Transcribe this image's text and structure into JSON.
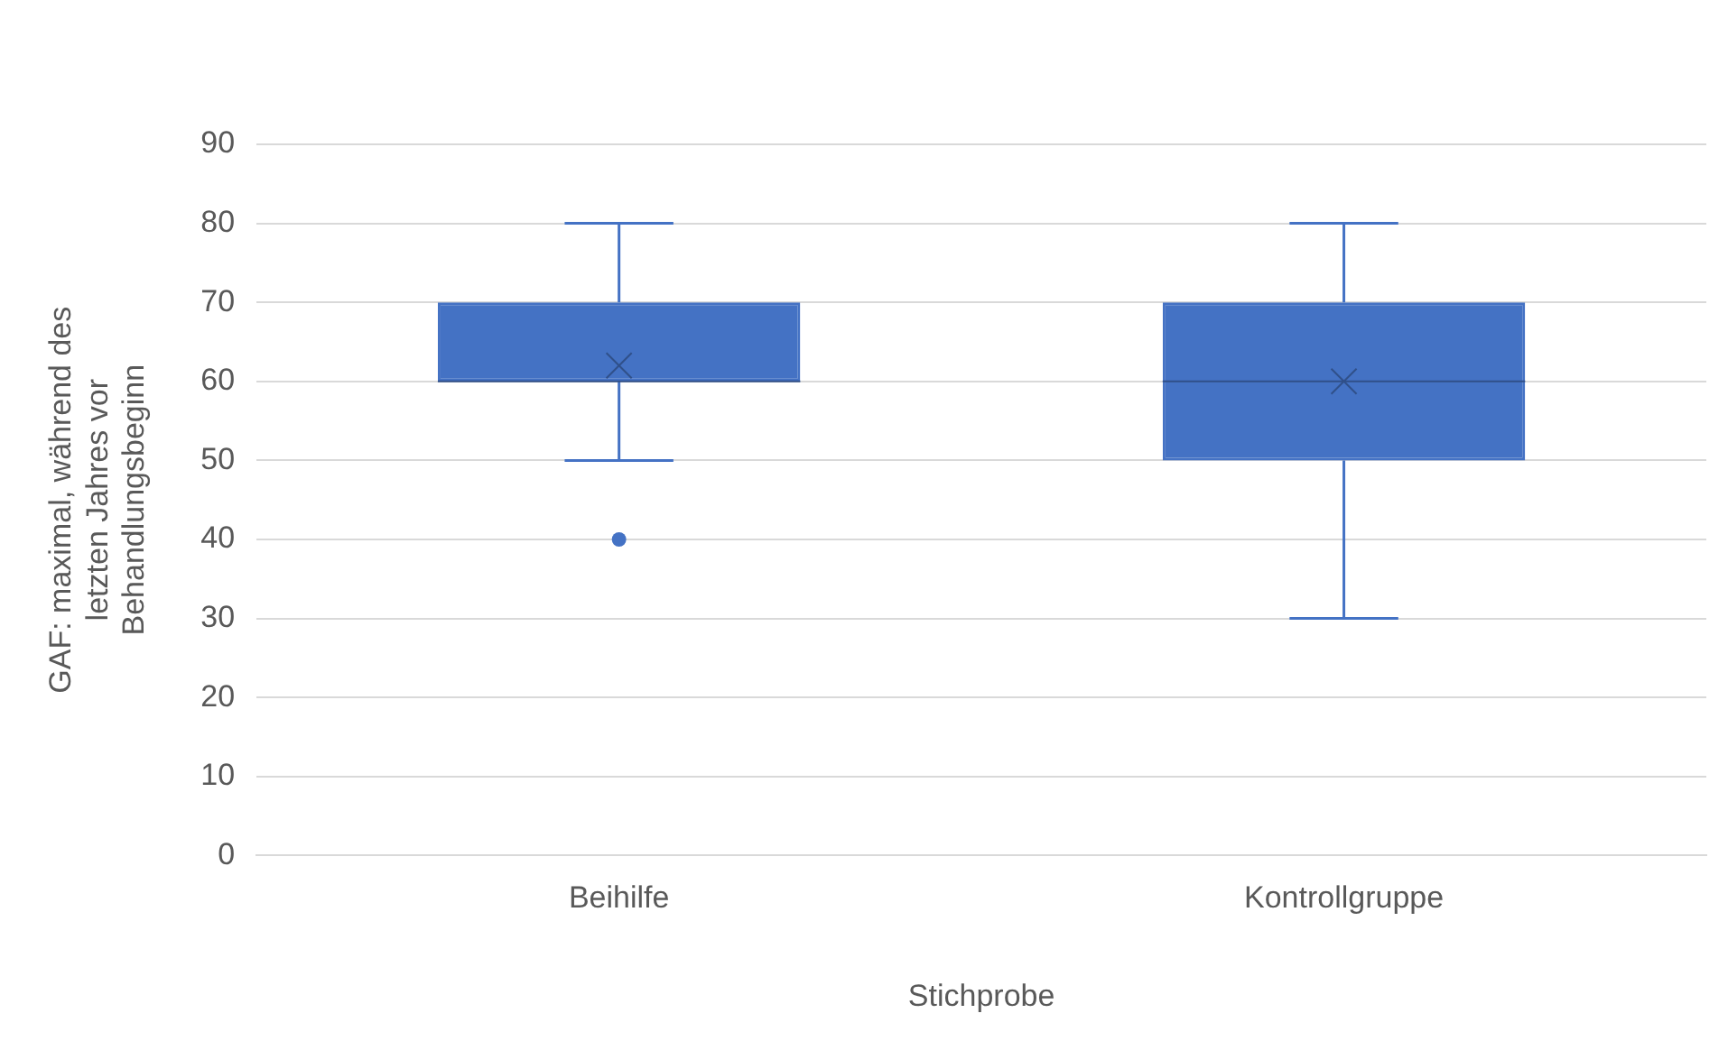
{
  "chart_data": {
    "type": "box",
    "xlabel": "Stichprobe",
    "ylabel": "GAF: maximal, während des letzten Jahres vor Behandlungsbeginn",
    "categories": [
      "Beihilfe",
      "Kontrollgruppe"
    ],
    "color": "#4472c4",
    "boxes": [
      {
        "low": 50,
        "q1": 60,
        "median": 60,
        "q3": 70,
        "high": 80,
        "mean": 62,
        "outliers": [
          40
        ]
      },
      {
        "low": 30,
        "q1": 50,
        "median": 60,
        "q3": 70,
        "high": 80,
        "mean": 60
      }
    ],
    "ylim": [
      0,
      90
    ],
    "yticks": [
      0,
      10,
      20,
      30,
      40,
      50,
      60,
      70,
      80,
      90
    ],
    "grid": "y",
    "legend": false
  }
}
